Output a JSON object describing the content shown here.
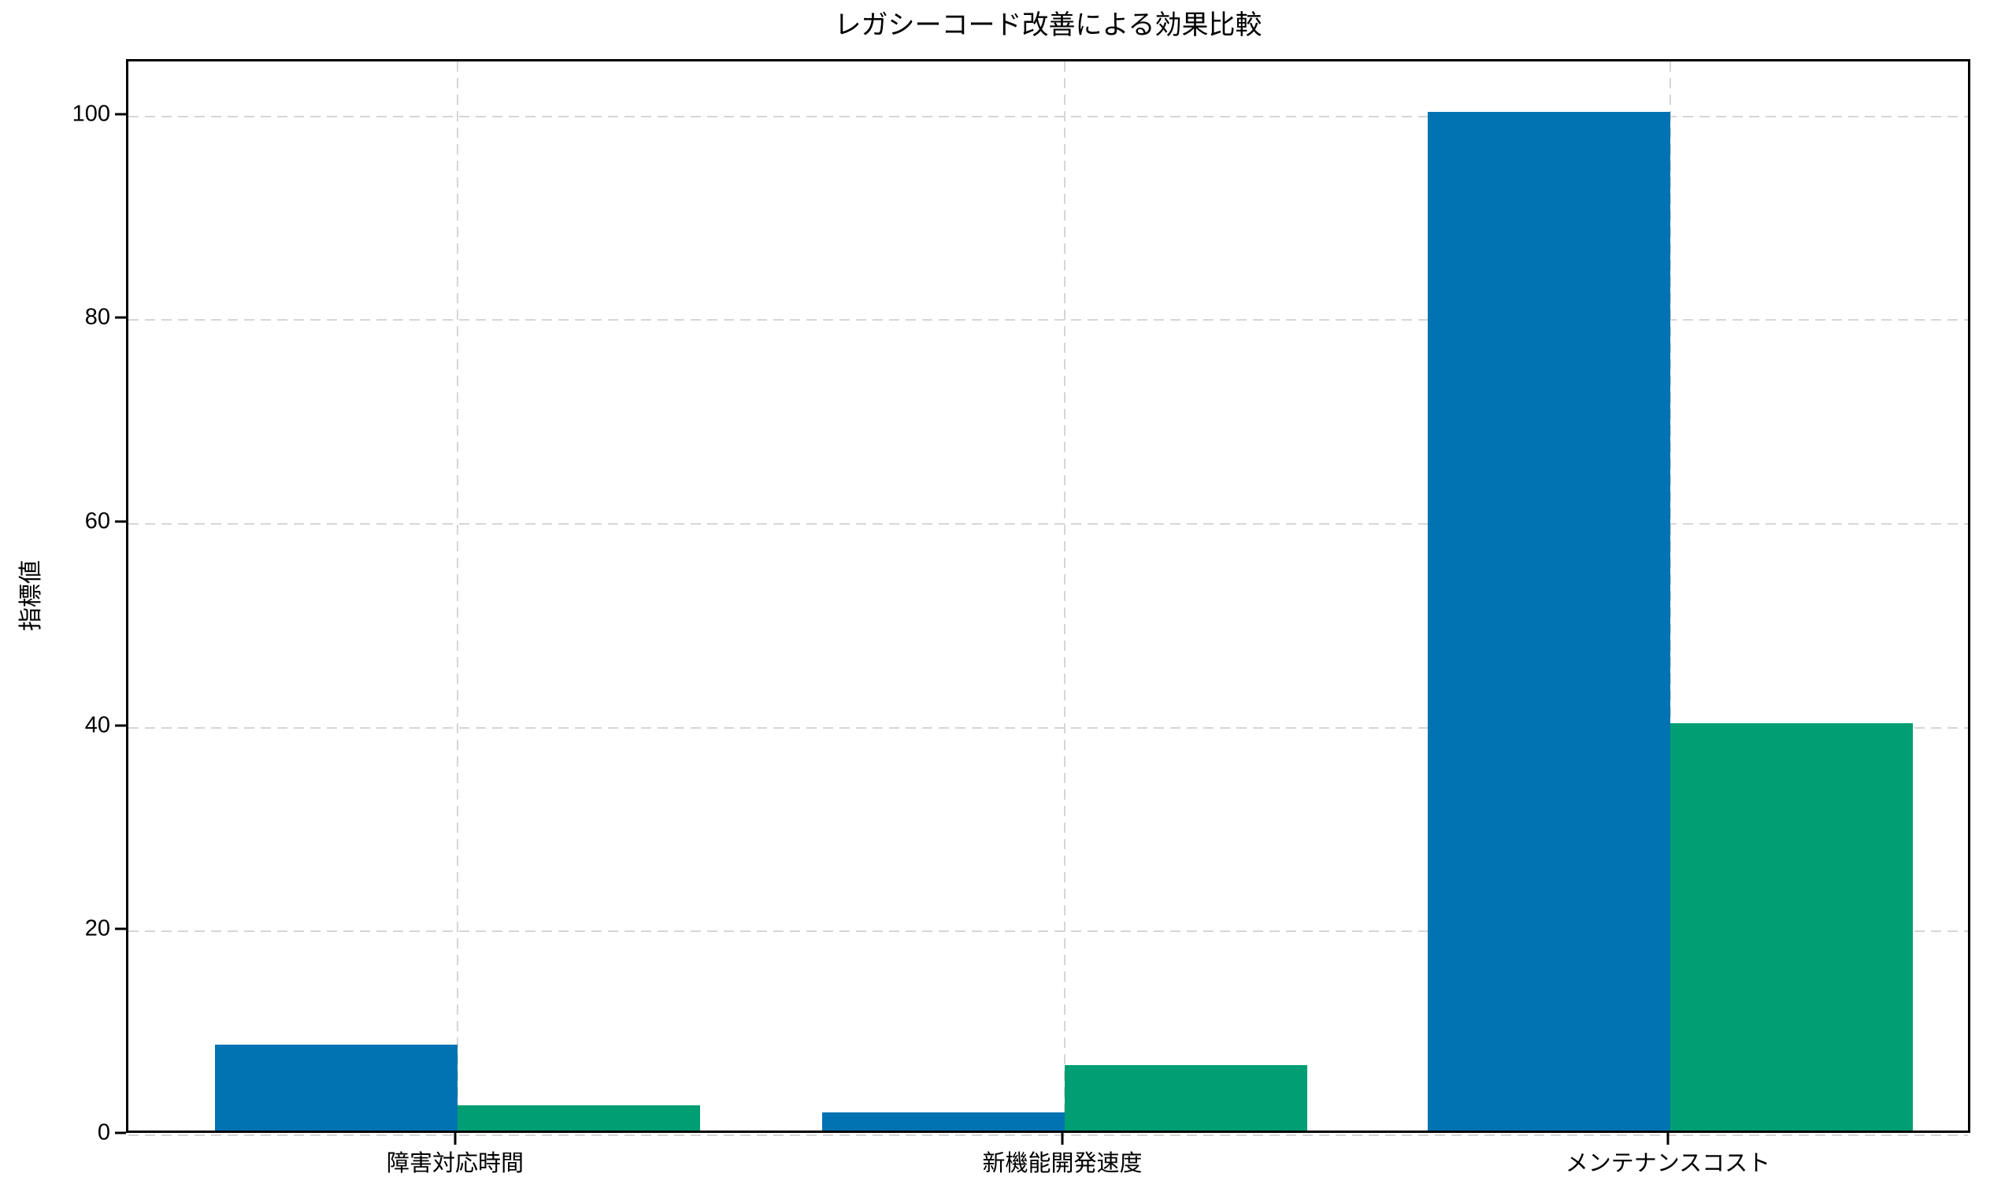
{
  "chart_data": {
    "type": "bar",
    "title": "レガシーコード改善による効果比較",
    "xlabel": "",
    "ylabel": "指標値",
    "categories": [
      "障害対応時間",
      "新機能開発速度",
      "メンテナンスコスト"
    ],
    "series": [
      {
        "name": "blue-series",
        "color": "#0173b2",
        "values": [
          8.4,
          1.8,
          100
        ]
      },
      {
        "name": "green-series",
        "color": "#029e73",
        "values": [
          2.5,
          6.4,
          40
        ]
      }
    ],
    "yticks": [
      0,
      20,
      40,
      60,
      80,
      100
    ],
    "ylim": [
      0,
      105.4
    ],
    "grid": "dashed, both axes, light gray, below bars",
    "legend_position": "none",
    "colors": {
      "axis": "#000000",
      "grid": "#d6d6d6",
      "background": "#ffffff",
      "text": "#000000"
    }
  }
}
